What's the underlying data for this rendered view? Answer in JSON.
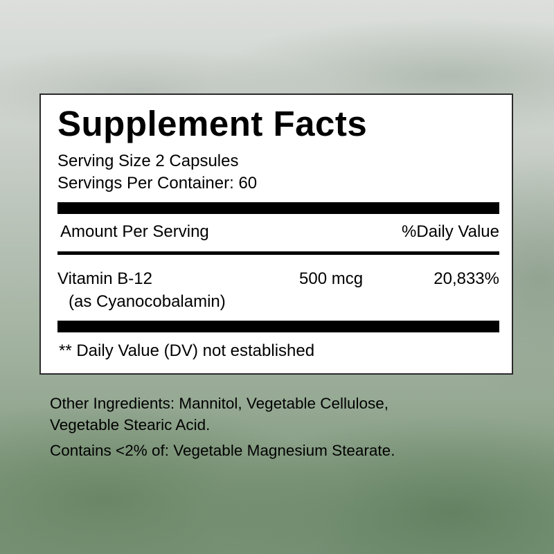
{
  "label": {
    "title": "Supplement Facts",
    "serving_size": "Serving Size 2 Capsules",
    "servings_per_container": "Servings Per Container: 60",
    "amount_header": "Amount Per Serving",
    "dv_header": "%Daily Value",
    "nutrients": [
      {
        "name": "Vitamin B-12",
        "source": "(as Cyanocobalamin)",
        "amount": "500 mcg",
        "dv": "20,833%"
      }
    ],
    "footnote": "** Daily Value (DV) not established"
  },
  "other_ingredients": {
    "line1": "Other Ingredients: Mannitol, Vegetable Cellulose,",
    "line2": "Vegetable Stearic Acid.",
    "line3": "Contains <2% of: Vegetable Magnesium Stearate."
  }
}
